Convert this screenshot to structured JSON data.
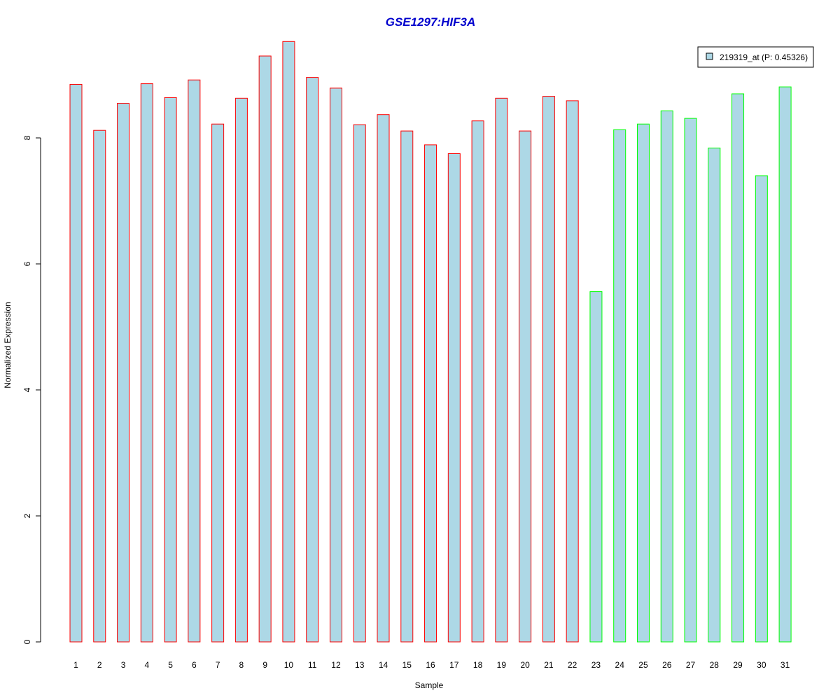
{
  "chart_data": {
    "type": "bar",
    "title": "GSE1297:HIF3A",
    "xlabel": "Sample",
    "ylabel": "Normalized Expression",
    "ylim": [
      0,
      9.6
    ],
    "y_ticks": [
      0,
      2,
      4,
      6,
      8
    ],
    "grid": false,
    "legend_position": "top-right",
    "categories": [
      "1",
      "2",
      "3",
      "4",
      "5",
      "6",
      "7",
      "8",
      "9",
      "10",
      "11",
      "12",
      "13",
      "14",
      "15",
      "16",
      "17",
      "18",
      "19",
      "20",
      "21",
      "22",
      "23",
      "24",
      "25",
      "26",
      "27",
      "28",
      "29",
      "30",
      "31"
    ],
    "series": [
      {
        "name": "219319_at (P: 0.45326)",
        "values": [
          8.85,
          8.12,
          8.55,
          8.86,
          8.64,
          8.92,
          8.22,
          8.63,
          9.3,
          9.53,
          8.96,
          8.79,
          8.21,
          8.37,
          8.11,
          7.89,
          7.75,
          8.27,
          8.63,
          8.11,
          8.66,
          8.59,
          5.56,
          8.13,
          8.22,
          8.43,
          8.31,
          7.84,
          8.7,
          7.4,
          8.81
        ]
      }
    ],
    "groups": [
      "1",
      "1",
      "1",
      "1",
      "1",
      "1",
      "1",
      "1",
      "1",
      "1",
      "1",
      "1",
      "1",
      "1",
      "1",
      "1",
      "1",
      "1",
      "1",
      "1",
      "1",
      "1",
      "2",
      "2",
      "2",
      "2",
      "2",
      "2",
      "2",
      "2",
      "2"
    ]
  },
  "colors": {
    "bar_fill": "#add8e6",
    "group_1_border": "#ff0000",
    "group_2_border": "#00ff00",
    "title": "#0000cd",
    "axis": "#000000"
  }
}
